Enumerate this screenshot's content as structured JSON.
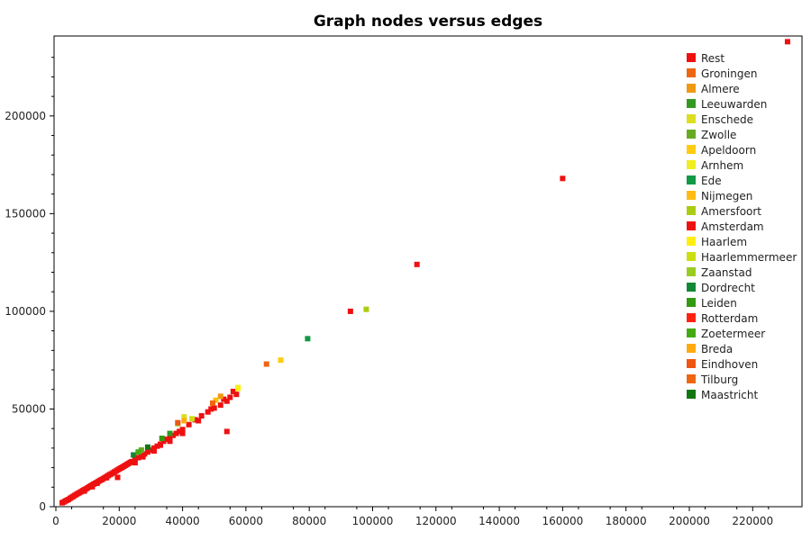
{
  "chart_data": {
    "type": "scatter",
    "title": "Graph nodes versus edges",
    "xlabel": "",
    "ylabel": "",
    "xlim": [
      0,
      235000
    ],
    "ylim": [
      0,
      240000
    ],
    "xticks": [
      0,
      20000,
      40000,
      60000,
      80000,
      100000,
      120000,
      140000,
      160000,
      180000,
      200000,
      220000
    ],
    "yticks": [
      0,
      50000,
      100000,
      150000,
      200000
    ],
    "grid": false,
    "legend_position": "top-right",
    "series": [
      {
        "name": "Rest",
        "color": "#ee1111",
        "points": [
          [
            2000,
            2000
          ],
          [
            2500,
            2400
          ],
          [
            3000,
            2900
          ],
          [
            3500,
            3300
          ],
          [
            4000,
            3700
          ],
          [
            4500,
            4300
          ],
          [
            5000,
            4800
          ],
          [
            5500,
            5300
          ],
          [
            6000,
            5800
          ],
          [
            6500,
            6300
          ],
          [
            7000,
            6800
          ],
          [
            7500,
            7200
          ],
          [
            8000,
            7700
          ],
          [
            8500,
            8200
          ],
          [
            9000,
            8700
          ],
          [
            9500,
            9100
          ],
          [
            10000,
            9600
          ],
          [
            10500,
            10100
          ],
          [
            11000,
            10600
          ],
          [
            11500,
            11100
          ],
          [
            12000,
            11600
          ],
          [
            12500,
            12000
          ],
          [
            13000,
            12500
          ],
          [
            13500,
            13000
          ],
          [
            14000,
            13500
          ],
          [
            14500,
            13900
          ],
          [
            15000,
            14400
          ],
          [
            15500,
            14900
          ],
          [
            16000,
            15400
          ],
          [
            16500,
            15900
          ],
          [
            17000,
            16400
          ],
          [
            17500,
            16800
          ],
          [
            18000,
            17300
          ],
          [
            18500,
            17800
          ],
          [
            19000,
            18300
          ],
          [
            19500,
            18800
          ],
          [
            20000,
            19300
          ],
          [
            20500,
            19800
          ],
          [
            21000,
            20200
          ],
          [
            21500,
            20700
          ],
          [
            22000,
            21200
          ],
          [
            22500,
            21700
          ],
          [
            23000,
            22200
          ],
          [
            23500,
            22700
          ],
          [
            24000,
            23100
          ],
          [
            25000,
            24100
          ],
          [
            26000,
            25100
          ],
          [
            27000,
            26000
          ],
          [
            28000,
            27000
          ],
          [
            29000,
            28000
          ],
          [
            30000,
            29000
          ],
          [
            31000,
            30000
          ],
          [
            32000,
            31000
          ],
          [
            33000,
            32000
          ],
          [
            34000,
            33500
          ],
          [
            35000,
            34500
          ],
          [
            36000,
            35500
          ],
          [
            37000,
            36500
          ],
          [
            38000,
            37500
          ],
          [
            39000,
            38500
          ],
          [
            40000,
            39500
          ],
          [
            42000,
            42000
          ],
          [
            44000,
            44500
          ],
          [
            46000,
            46500
          ],
          [
            48000,
            48500
          ],
          [
            50000,
            50500
          ],
          [
            52000,
            52000
          ],
          [
            54000,
            54000
          ],
          [
            55000,
            56000
          ],
          [
            57000,
            57500
          ],
          [
            54000,
            38500
          ],
          [
            19500,
            15000
          ],
          [
            9000,
            8000
          ],
          [
            11500,
            10200
          ],
          [
            13000,
            12000
          ],
          [
            16000,
            14800
          ],
          [
            25000,
            22500
          ],
          [
            27500,
            25500
          ],
          [
            31000,
            28500
          ],
          [
            33000,
            31500
          ],
          [
            36000,
            33500
          ],
          [
            40000,
            37500
          ],
          [
            45000,
            44000
          ],
          [
            49000,
            50000
          ],
          [
            53000,
            55000
          ],
          [
            56000,
            59000
          ],
          [
            231000,
            238000
          ],
          [
            160000,
            168000
          ],
          [
            114000,
            124000
          ],
          [
            93000,
            100000
          ]
        ]
      },
      {
        "name": "Groningen",
        "color": "#ee6611",
        "points": [
          [
            66500,
            73000
          ]
        ]
      },
      {
        "name": "Almere",
        "color": "#ee9911",
        "points": [
          [
            52000,
            56500
          ]
        ]
      },
      {
        "name": "Leeuwarden",
        "color": "#339922",
        "points": [
          [
            36000,
            37500
          ]
        ]
      },
      {
        "name": "Enschede",
        "color": "#dddd22",
        "points": [
          [
            40500,
            46000
          ]
        ]
      },
      {
        "name": "Zwolle",
        "color": "#66aa22",
        "points": [
          [
            27000,
            29000
          ]
        ]
      },
      {
        "name": "Apeldoorn",
        "color": "#ffcc11",
        "points": [
          [
            71000,
            75000
          ]
        ]
      },
      {
        "name": "Arnhem",
        "color": "#eeee22",
        "points": [
          [
            57500,
            61000
          ]
        ]
      },
      {
        "name": "Ede",
        "color": "#119944",
        "points": [
          [
            79500,
            86000
          ]
        ]
      },
      {
        "name": "Nijmegen",
        "color": "#ffbb11",
        "points": [
          [
            50500,
            54500
          ]
        ]
      },
      {
        "name": "Amersfoort",
        "color": "#aacc11",
        "points": [
          [
            98000,
            101000
          ]
        ]
      },
      {
        "name": "Amsterdam",
        "color": "#ee1111",
        "points": []
      },
      {
        "name": "Haarlem",
        "color": "#ffee11",
        "points": [
          [
            57500,
            60500
          ]
        ]
      },
      {
        "name": "Haarlemmermeer",
        "color": "#ccdd11",
        "points": [
          [
            43000,
            45000
          ]
        ]
      },
      {
        "name": "Zaanstad",
        "color": "#99cc22",
        "points": [
          [
            38500,
            42500
          ]
        ]
      },
      {
        "name": "Dordrecht",
        "color": "#118833",
        "points": [
          [
            24500,
            26500
          ]
        ]
      },
      {
        "name": "Leiden",
        "color": "#339911",
        "points": [
          [
            33500,
            35000
          ]
        ]
      },
      {
        "name": "Rotterdam",
        "color": "#ff2211",
        "points": []
      },
      {
        "name": "Zoetermeer",
        "color": "#44aa11",
        "points": [
          [
            26000,
            28000
          ]
        ]
      },
      {
        "name": "Breda",
        "color": "#ffaa11",
        "points": [
          [
            40500,
            44000
          ]
        ]
      },
      {
        "name": "Eindhoven",
        "color": "#ee5511",
        "points": [
          [
            38500,
            43000
          ]
        ]
      },
      {
        "name": "Tilburg",
        "color": "#ee6611",
        "points": [
          [
            49500,
            53000
          ]
        ]
      },
      {
        "name": "Maastricht",
        "color": "#117711",
        "points": [
          [
            29000,
            30500
          ]
        ]
      }
    ]
  }
}
